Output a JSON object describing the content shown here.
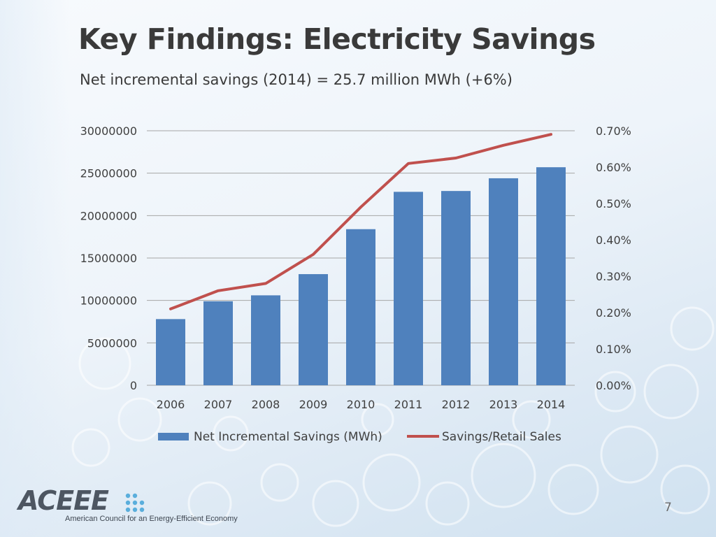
{
  "slide": {
    "title": "Key Findings: Electricity Savings",
    "subtitle": "Net incremental savings (2014) = 25.7 million MWh (+6%)",
    "page_number": "7"
  },
  "logo": {
    "wordmark": "ACEEE",
    "tagline": "American Council for an Energy-Efficient Economy"
  },
  "colors": {
    "bar": "#4f81bd",
    "line": "#c0504d",
    "grid": "#a6a6a6",
    "text": "#404040"
  },
  "chart_data": {
    "type": "bar",
    "categories": [
      "2006",
      "2007",
      "2008",
      "2009",
      "2010",
      "2011",
      "2012",
      "2013",
      "2014"
    ],
    "series": [
      {
        "name": "Net Incremental Savings (MWh)",
        "type": "bar",
        "axis": "left",
        "values": [
          7800000,
          9900000,
          10600000,
          13100000,
          18400000,
          22800000,
          22900000,
          24400000,
          25700000
        ]
      },
      {
        "name": "Savings/Retail Sales",
        "type": "line",
        "axis": "right",
        "values": [
          0.0021,
          0.0026,
          0.0028,
          0.0036,
          0.0049,
          0.0061,
          0.00625,
          0.0066,
          0.0069
        ]
      }
    ],
    "ylim_left": [
      0,
      30000000
    ],
    "yticks_left": [
      "0",
      "5000000",
      "10000000",
      "15000000",
      "20000000",
      "25000000",
      "30000000"
    ],
    "ylim_right": [
      0,
      0.007
    ],
    "yticks_right": [
      "0.00%",
      "0.10%",
      "0.20%",
      "0.30%",
      "0.40%",
      "0.50%",
      "0.60%",
      "0.70%"
    ],
    "grid": true,
    "legend": "bottom"
  }
}
